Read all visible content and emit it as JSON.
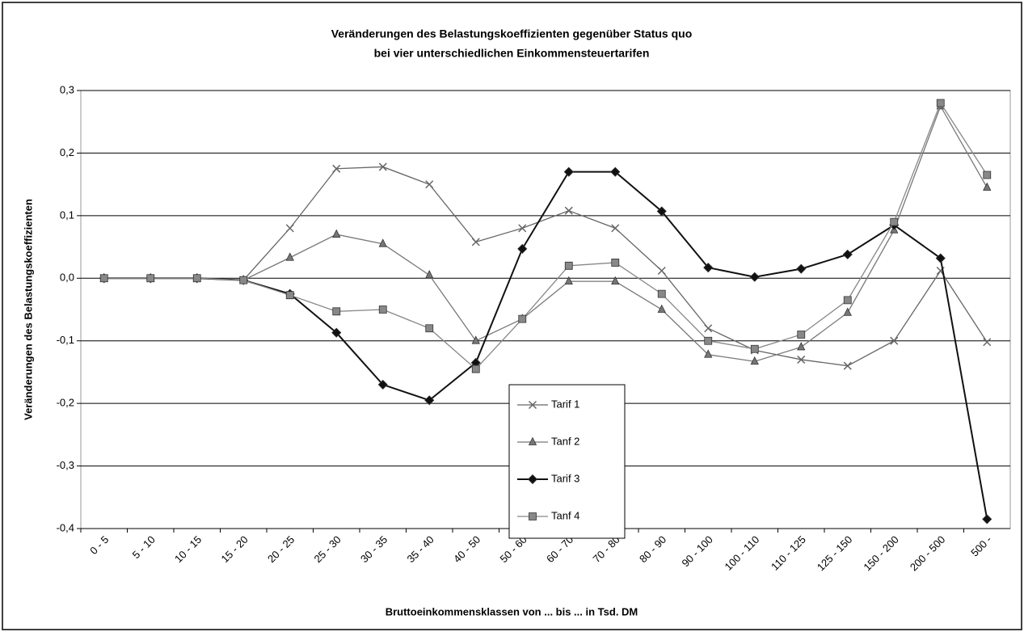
{
  "chart_data": {
    "type": "line",
    "title": "Veränderungen des Belastungskoeffizienten gegenüber Status quo",
    "subtitle": "bei vier unterschiedlichen Einkommensteuertarifen",
    "y_label": "Veränderungen des Belastungskoeffizienten",
    "x_label": "Bruttoeinkommensklassen von ... bis ...  in Tsd. DM",
    "categories": [
      "0 - 5",
      "5 - 10",
      "10 - 15",
      "15 - 20",
      "20 - 25",
      "25 - 30",
      "30 - 35",
      "35 - 40",
      "40 - 50",
      "50 - 60",
      "60 - 70",
      "70 - 80",
      "80 - 90",
      "90 - 100",
      "100 - 110",
      "110 - 125",
      "125 - 150",
      "150 - 200",
      "200 - 500",
      "500 -"
    ],
    "series": [
      {
        "name": "Tarif 1",
        "color": "#666666",
        "marker": "x",
        "values": [
          0,
          0,
          0,
          -0.003,
          0.08,
          0.175,
          0.178,
          0.15,
          0.058,
          0.08,
          0.108,
          0.08,
          0.012,
          -0.08,
          -0.115,
          -0.13,
          -0.14,
          -0.1,
          0.012,
          -0.102
        ]
      },
      {
        "name": "Tanf 2",
        "color": "#777777",
        "marker": "triangle",
        "values": [
          0,
          0,
          0,
          -0.003,
          0.033,
          0.07,
          0.055,
          0.005,
          -0.1,
          -0.065,
          -0.005,
          -0.005,
          -0.05,
          -0.122,
          -0.133,
          -0.11,
          -0.055,
          0.077,
          0.275,
          0.145
        ]
      },
      {
        "name": "Tarif 3",
        "color": "#111111",
        "marker": "diamond",
        "values": [
          0,
          0,
          0,
          -0.003,
          -0.025,
          -0.087,
          -0.17,
          -0.195,
          -0.135,
          0.047,
          0.17,
          0.17,
          0.107,
          0.017,
          0.002,
          0.015,
          0.038,
          0.085,
          0.032,
          -0.385
        ]
      },
      {
        "name": "Tanf 4",
        "color": "#888888",
        "marker": "square",
        "values": [
          0,
          0,
          0,
          -0.003,
          -0.027,
          -0.053,
          -0.05,
          -0.08,
          -0.145,
          -0.065,
          0.02,
          0.025,
          -0.025,
          -0.1,
          -0.113,
          -0.09,
          -0.035,
          0.09,
          0.28,
          0.165
        ]
      }
    ],
    "ylim": [
      -0.4,
      0.3
    ],
    "yticks": [
      {
        "value": -0.4,
        "label": "-0,4"
      },
      {
        "value": -0.3,
        "label": "-0,3"
      },
      {
        "value": -0.2,
        "label": "-0,2"
      },
      {
        "value": -0.1,
        "label": "-0,1"
      },
      {
        "value": 0,
        "label": "0,0"
      },
      {
        "value": 0.1,
        "label": "0,1"
      },
      {
        "value": 0.2,
        "label": "0,2"
      },
      {
        "value": 0.3,
        "label": "0,3"
      }
    ],
    "grid": true
  }
}
